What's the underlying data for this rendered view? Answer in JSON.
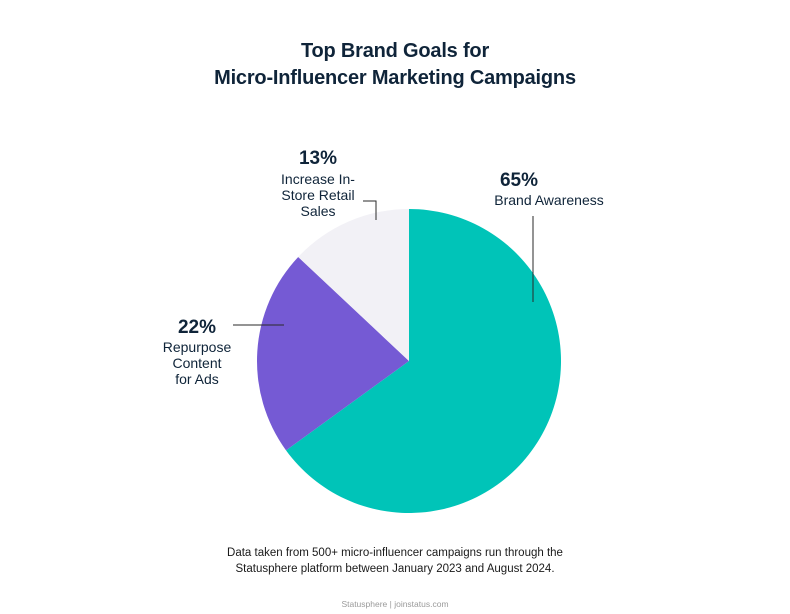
{
  "chart_data": {
    "type": "pie",
    "title_line1": "Top Brand Goals for",
    "title_line2": "Micro-Influencer Marketing Campaigns",
    "slices": [
      {
        "label": "Brand Awareness",
        "value": 65,
        "display": "65%",
        "color": "#00c4b8"
      },
      {
        "label": "Repurpose Content for Ads",
        "value": 22,
        "display": "22%",
        "color": "#755ad4"
      },
      {
        "label": "Increase In-Store Retail Sales",
        "value": 13,
        "display": "13%",
        "color": "#f2f1f6"
      }
    ],
    "label_lines": {
      "brand": [
        "Brand Awareness"
      ],
      "repurpose": [
        "Repurpose",
        "Content",
        "for Ads"
      ],
      "retail": [
        "Increase In-",
        "Store Retail",
        "Sales"
      ]
    }
  },
  "note_line1": "Data taken from 500+ micro-influencer campaigns run through the",
  "note_line2": "Statusphere platform between January 2023 and August 2024.",
  "footer": "Statusphere | joinstatus.com"
}
